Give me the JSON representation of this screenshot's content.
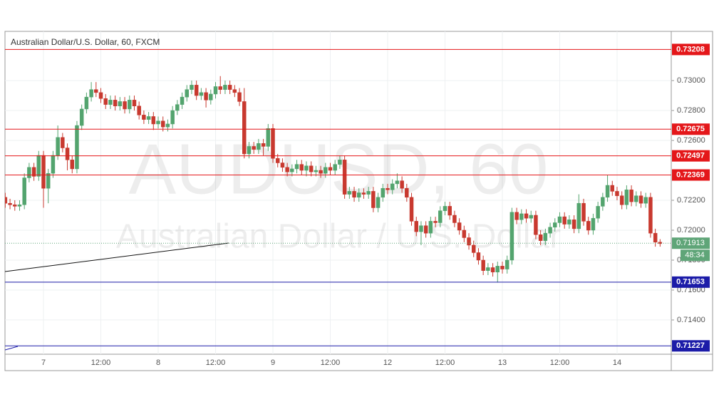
{
  "chart_data": {
    "type": "candlestick",
    "title": "Australian Dollar/U.S. Dollar, 60, FXCM",
    "watermark": {
      "symbol": "AUDUSD, 60",
      "name": "Australian Dollar / U.S. Dollar"
    },
    "categories": [
      null,
      null,
      null,
      null,
      null,
      null,
      null,
      null,
      "7",
      null,
      null,
      null,
      null,
      null,
      null,
      null,
      null,
      null,
      null,
      null,
      "12:00",
      null,
      null,
      null,
      null,
      null,
      null,
      null,
      null,
      null,
      null,
      null,
      "8",
      null,
      null,
      null,
      null,
      null,
      null,
      null,
      null,
      null,
      null,
      null,
      "12:00",
      null,
      null,
      null,
      null,
      null,
      null,
      null,
      null,
      null,
      null,
      null,
      "9",
      null,
      null,
      null,
      null,
      null,
      null,
      null,
      null,
      null,
      null,
      null,
      "12:00",
      null,
      null,
      null,
      null,
      null,
      null,
      null,
      null,
      null,
      null,
      null,
      "12",
      null,
      null,
      null,
      null,
      null,
      null,
      null,
      null,
      null,
      null,
      null,
      "12:00",
      null,
      null,
      null,
      null,
      null,
      null,
      null,
      null,
      null,
      null,
      null,
      "13",
      null,
      null,
      null,
      null,
      null,
      null,
      null,
      null,
      null,
      null,
      null,
      "12:00",
      null,
      null,
      null,
      null,
      null,
      null,
      null,
      null,
      null,
      null,
      null,
      "14",
      null,
      null,
      null,
      null,
      null,
      null,
      null,
      null,
      null
    ],
    "open": [
      0.7222,
      0.7218,
      0.7217,
      0.7216,
      0.7217,
      0.7235,
      0.7242,
      0.7236,
      0.725,
      0.7228,
      0.7238,
      0.725,
      0.7262,
      0.7255,
      0.7247,
      0.7241,
      0.727,
      0.7281,
      0.7289,
      0.7294,
      0.7292,
      0.7288,
      0.7284,
      0.7287,
      0.7283,
      0.7286,
      0.7281,
      0.7287,
      0.7283,
      0.7277,
      0.7274,
      0.7276,
      0.7271,
      0.7273,
      0.7269,
      0.7271,
      0.728,
      0.7284,
      0.7289,
      0.7294,
      0.7297,
      0.729,
      0.7292,
      0.7287,
      0.7291,
      0.7296,
      0.7294,
      0.7297,
      0.7294,
      0.7292,
      0.7286,
      0.7251,
      0.7256,
      0.7254,
      0.7258,
      0.7256,
      0.7268,
      0.7248,
      0.7245,
      0.7242,
      0.7239,
      0.7241,
      0.7244,
      0.724,
      0.7243,
      0.7239,
      0.724,
      0.7238,
      0.7242,
      0.724,
      0.7244,
      0.7247,
      0.7224,
      0.7226,
      0.7222,
      0.7225,
      0.7224,
      0.7226,
      0.7215,
      0.7222,
      0.7228,
      0.7227,
      0.7231,
      0.7233,
      0.7228,
      0.7222,
      0.7206,
      0.7199,
      0.7203,
      0.7198,
      0.7206,
      0.7205,
      0.7213,
      0.7216,
      0.721,
      0.7205,
      0.72,
      0.7195,
      0.719,
      0.7185,
      0.718,
      0.7173,
      0.7175,
      0.7172,
      0.7176,
      0.7174,
      0.718,
      0.7212,
      0.7207,
      0.7211,
      0.7208,
      0.721,
      0.7197,
      0.7193,
      0.7198,
      0.7202,
      0.7205,
      0.7209,
      0.7204,
      0.7207,
      0.7201,
      0.7218,
      0.7206,
      0.72,
      0.7208,
      0.7216,
      0.7222,
      0.723,
      0.7226,
      0.7223,
      0.7217,
      0.7227,
      0.7219,
      0.7223,
      0.7218,
      0.7222,
      0.7198,
      0.7192
    ],
    "high": [
      0.7225,
      0.7221,
      0.722,
      0.722,
      0.7238,
      0.7245,
      0.7245,
      0.7253,
      0.7253,
      0.7241,
      0.7253,
      0.727,
      0.7265,
      0.7258,
      0.725,
      0.7273,
      0.7284,
      0.7292,
      0.7299,
      0.7299,
      0.7295,
      0.7291,
      0.729,
      0.729,
      0.7289,
      0.7289,
      0.729,
      0.729,
      0.7286,
      0.728,
      0.7279,
      0.7279,
      0.7276,
      0.7276,
      0.7274,
      0.7283,
      0.7287,
      0.7292,
      0.7297,
      0.73,
      0.73,
      0.7295,
      0.7295,
      0.7294,
      0.7299,
      0.7303,
      0.73,
      0.73,
      0.7297,
      0.7295,
      0.7295,
      0.7259,
      0.7259,
      0.7261,
      0.7261,
      0.7271,
      0.7271,
      0.7251,
      0.7248,
      0.7245,
      0.7244,
      0.7247,
      0.7247,
      0.7246,
      0.7246,
      0.7243,
      0.7243,
      0.7245,
      0.7245,
      0.7247,
      0.725,
      0.725,
      0.7229,
      0.7229,
      0.7228,
      0.7228,
      0.7229,
      0.7229,
      0.7225,
      0.7231,
      0.7231,
      0.7234,
      0.7238,
      0.7236,
      0.7231,
      0.7225,
      0.7209,
      0.7206,
      0.7206,
      0.7209,
      0.7209,
      0.7216,
      0.7219,
      0.7219,
      0.7213,
      0.7208,
      0.7203,
      0.7198,
      0.7193,
      0.7188,
      0.7183,
      0.7178,
      0.7178,
      0.7179,
      0.7179,
      0.7183,
      0.7215,
      0.7215,
      0.7214,
      0.7214,
      0.7213,
      0.7213,
      0.72,
      0.7201,
      0.7205,
      0.7208,
      0.7212,
      0.7212,
      0.721,
      0.721,
      0.7224,
      0.7221,
      0.7209,
      0.7211,
      0.7219,
      0.7225,
      0.7237,
      0.7233,
      0.7229,
      0.7226,
      0.723,
      0.723,
      0.7226,
      0.7226,
      0.7225,
      0.7225,
      0.7201,
      0.7194
    ],
    "low": [
      0.7215,
      0.7214,
      0.7213,
      0.7213,
      0.7214,
      0.7232,
      0.7233,
      0.7233,
      0.7215,
      0.7218,
      0.7235,
      0.7247,
      0.7252,
      0.724,
      0.7238,
      0.7238,
      0.7267,
      0.7278,
      0.7286,
      0.7289,
      0.7285,
      0.7281,
      0.7281,
      0.728,
      0.728,
      0.7278,
      0.7278,
      0.728,
      0.7274,
      0.7271,
      0.7271,
      0.7267,
      0.7268,
      0.7266,
      0.7266,
      0.7268,
      0.7277,
      0.7281,
      0.7286,
      0.7291,
      0.7287,
      0.7287,
      0.7282,
      0.7284,
      0.7288,
      0.7291,
      0.7291,
      0.7291,
      0.7289,
      0.7283,
      0.7248,
      0.7248,
      0.7251,
      0.7251,
      0.725,
      0.7253,
      0.7245,
      0.7242,
      0.7239,
      0.7236,
      0.7236,
      0.7238,
      0.7237,
      0.7236,
      0.7236,
      0.7236,
      0.7235,
      0.7235,
      0.7237,
      0.7237,
      0.7241,
      0.7221,
      0.7221,
      0.7219,
      0.7219,
      0.7221,
      0.7221,
      0.7212,
      0.7212,
      0.7219,
      0.7224,
      0.7224,
      0.7228,
      0.7225,
      0.7219,
      0.7203,
      0.7196,
      0.719,
      0.7195,
      0.7195,
      0.7202,
      0.7202,
      0.721,
      0.7207,
      0.7202,
      0.7197,
      0.7192,
      0.7187,
      0.7182,
      0.7177,
      0.717,
      0.717,
      0.7169,
      0.7165,
      0.7171,
      0.7171,
      0.7177,
      0.7204,
      0.7204,
      0.7205,
      0.7205,
      0.7194,
      0.719,
      0.719,
      0.7195,
      0.7199,
      0.7202,
      0.7201,
      0.7201,
      0.7198,
      0.7198,
      0.7203,
      0.7197,
      0.7197,
      0.7205,
      0.7213,
      0.7219,
      0.7223,
      0.722,
      0.7214,
      0.7214,
      0.7216,
      0.7216,
      0.7215,
      0.7215,
      0.7195,
      0.7189,
      0.7189
    ],
    "close": [
      0.7218,
      0.7217,
      0.7216,
      0.7217,
      0.7235,
      0.7242,
      0.7236,
      0.725,
      0.7228,
      0.7238,
      0.725,
      0.7262,
      0.7255,
      0.7247,
      0.7241,
      0.727,
      0.7281,
      0.7289,
      0.7294,
      0.7292,
      0.7288,
      0.7284,
      0.7287,
      0.7283,
      0.7286,
      0.7281,
      0.7287,
      0.7283,
      0.7277,
      0.7274,
      0.7276,
      0.7271,
      0.7273,
      0.7269,
      0.7271,
      0.728,
      0.7284,
      0.7289,
      0.7294,
      0.7297,
      0.729,
      0.7292,
      0.7287,
      0.7291,
      0.7296,
      0.7294,
      0.7297,
      0.7294,
      0.7292,
      0.7286,
      0.7251,
      0.7256,
      0.7254,
      0.7258,
      0.7256,
      0.7268,
      0.7248,
      0.7245,
      0.7242,
      0.7239,
      0.7241,
      0.7244,
      0.724,
      0.7243,
      0.7239,
      0.724,
      0.7238,
      0.7242,
      0.724,
      0.7244,
      0.7247,
      0.7224,
      0.7226,
      0.7222,
      0.7225,
      0.7224,
      0.7226,
      0.7215,
      0.7222,
      0.7228,
      0.7227,
      0.7231,
      0.7233,
      0.7228,
      0.7222,
      0.7206,
      0.7199,
      0.7203,
      0.7198,
      0.7206,
      0.7205,
      0.7213,
      0.7216,
      0.721,
      0.7205,
      0.72,
      0.7195,
      0.719,
      0.7185,
      0.718,
      0.7173,
      0.7175,
      0.7172,
      0.7176,
      0.7174,
      0.718,
      0.7212,
      0.7207,
      0.7211,
      0.7208,
      0.721,
      0.7197,
      0.7193,
      0.7198,
      0.7202,
      0.7205,
      0.7209,
      0.7204,
      0.7207,
      0.7201,
      0.7218,
      0.7206,
      0.72,
      0.7208,
      0.7216,
      0.7222,
      0.723,
      0.7226,
      0.7223,
      0.7217,
      0.7227,
      0.7219,
      0.7223,
      0.7218,
      0.7222,
      0.7198,
      0.7192,
      0.7191
    ],
    "up_color": "#53a46e",
    "down_color": "#c8392f",
    "ylim": [
      0.71171,
      0.73329
    ],
    "yticks": [
      {
        "value": 0.73,
        "label": "0.73000"
      },
      {
        "value": 0.728,
        "label": "0.72800"
      },
      {
        "value": 0.726,
        "label": "0.72600"
      },
      {
        "value": 0.722,
        "label": "0.72200"
      },
      {
        "value": 0.72,
        "label": "0.72000"
      },
      {
        "value": 0.718,
        "label": "0.71800"
      },
      {
        "value": 0.716,
        "label": "0.71600"
      },
      {
        "value": 0.714,
        "label": "0.71400"
      }
    ],
    "grid": true,
    "levels": [
      {
        "value": 0.73208,
        "color": "#e4171a"
      },
      {
        "value": 0.72675,
        "color": "#e4171a"
      },
      {
        "value": 0.72497,
        "color": "#e4171a"
      },
      {
        "value": 0.72369,
        "color": "#e4171a"
      },
      {
        "value": 0.71653,
        "color": "#1c1ca8"
      },
      {
        "value": 0.71227,
        "color": "#1c1ca8"
      }
    ],
    "last_price": {
      "value": 0.71913,
      "countdown": "48:34",
      "color": "#5fa578"
    }
  }
}
